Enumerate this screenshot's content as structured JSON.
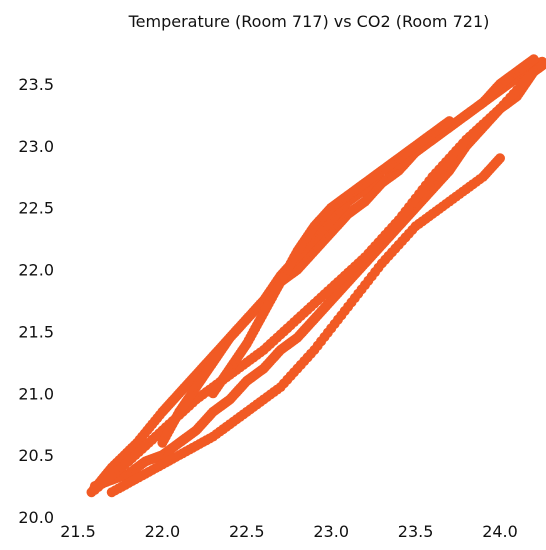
{
  "chart_data": {
    "type": "scatter",
    "title": "Temperature (Room 717) vs CO2 (Room 721)",
    "xlabel": "",
    "ylabel": "",
    "xlim": [
      21.5,
      24.3
    ],
    "ylim": [
      20.0,
      23.8
    ],
    "xticks": [
      "21.5",
      "22.0",
      "22.5",
      "23.0",
      "23.5",
      "24.0"
    ],
    "yticks": [
      "20.0",
      "20.5",
      "21.0",
      "21.5",
      "22.0",
      "22.5",
      "23.0",
      "23.5"
    ],
    "grid": false,
    "marker_color": "#f15a24",
    "series": [
      {
        "x": [
          21.58,
          21.7,
          21.85,
          22.0,
          22.1,
          22.2,
          22.3,
          22.4,
          22.5,
          22.6,
          22.7,
          22.8,
          22.9,
          23.0,
          23.1,
          23.2,
          23.3,
          23.4,
          23.5,
          23.6,
          23.7,
          23.8,
          23.9,
          24.0,
          24.1,
          24.2,
          24.25,
          24.2,
          24.1,
          24.0,
          23.9,
          23.8,
          23.7,
          23.6,
          23.5,
          23.4,
          23.3,
          23.2,
          23.1,
          23.0,
          22.9,
          22.8,
          22.7,
          22.6,
          22.5,
          22.4,
          22.3,
          22.2,
          22.1,
          22.0,
          21.9,
          21.8,
          21.7,
          21.6
        ],
        "y": [
          20.2,
          20.4,
          20.6,
          20.85,
          21.0,
          21.15,
          21.3,
          21.45,
          21.6,
          21.75,
          21.9,
          22.0,
          22.15,
          22.3,
          22.45,
          22.55,
          22.7,
          22.8,
          22.95,
          23.05,
          23.15,
          23.25,
          23.35,
          23.45,
          23.55,
          23.65,
          23.68,
          23.6,
          23.4,
          23.3,
          23.15,
          23.0,
          22.8,
          22.65,
          22.5,
          22.35,
          22.2,
          22.05,
          21.9,
          21.75,
          21.6,
          21.45,
          21.35,
          21.2,
          21.1,
          20.95,
          20.85,
          20.7,
          20.6,
          20.5,
          20.45,
          20.35,
          20.3,
          20.25
        ]
      },
      {
        "x": [
          21.6,
          21.8,
          22.0,
          22.2,
          22.4,
          22.6,
          22.8,
          23.0,
          23.2,
          23.4,
          23.6,
          23.8,
          24.0,
          24.2,
          24.25
        ],
        "y": [
          20.22,
          20.45,
          20.7,
          20.95,
          21.15,
          21.35,
          21.6,
          21.85,
          22.1,
          22.4,
          22.75,
          23.05,
          23.3,
          23.6,
          23.65
        ]
      },
      {
        "x": [
          21.7,
          21.9,
          22.1,
          22.3,
          22.5,
          22.7,
          22.9,
          23.1,
          23.3,
          23.5,
          23.7,
          23.9,
          24.0
        ],
        "y": [
          20.2,
          20.35,
          20.5,
          20.65,
          20.85,
          21.05,
          21.35,
          21.7,
          22.05,
          22.35,
          22.55,
          22.75,
          22.9
        ]
      },
      {
        "x": [
          22.0,
          22.1,
          22.2,
          22.3,
          22.4,
          22.5,
          22.6,
          22.7,
          22.8,
          22.9,
          23.0,
          23.1,
          23.2,
          23.3,
          23.4,
          23.5,
          23.6,
          23.7,
          23.8,
          23.9,
          24.0,
          24.1,
          24.2
        ],
        "y": [
          20.6,
          20.85,
          21.05,
          21.25,
          21.45,
          21.6,
          21.75,
          21.95,
          22.1,
          22.25,
          22.4,
          22.55,
          22.65,
          22.8,
          22.85,
          22.95,
          23.05,
          23.15,
          23.25,
          23.35,
          23.5,
          23.6,
          23.7
        ]
      },
      {
        "x": [
          22.3,
          22.4,
          22.5,
          22.6,
          22.7,
          22.8,
          22.9,
          23.0,
          23.1,
          23.2,
          23.3,
          23.4,
          23.5,
          23.6,
          23.7
        ],
        "y": [
          21.0,
          21.2,
          21.4,
          21.65,
          21.9,
          22.15,
          22.35,
          22.5,
          22.6,
          22.7,
          22.8,
          22.9,
          23.0,
          23.1,
          23.2
        ]
      }
    ]
  }
}
